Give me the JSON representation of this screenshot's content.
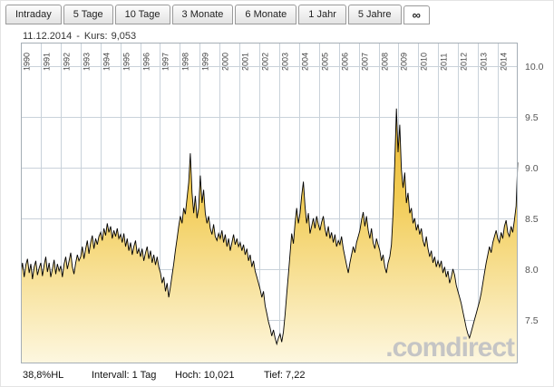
{
  "tabs": {
    "active_index": 7,
    "items": [
      {
        "id": "intraday",
        "label": "Intraday"
      },
      {
        "id": "5-tage",
        "label": "5 Tage"
      },
      {
        "id": "10-tage",
        "label": "10 Tage"
      },
      {
        "id": "3-monate",
        "label": "3 Monate"
      },
      {
        "id": "6-monate",
        "label": "6 Monate"
      },
      {
        "id": "1-jahr",
        "label": "1 Jahr"
      },
      {
        "id": "5-jahre",
        "label": "5 Jahre"
      },
      {
        "id": "max",
        "label": "∞"
      }
    ]
  },
  "header": {
    "date": "11.12.2014",
    "separator": "-",
    "kurs_label": "Kurs:",
    "kurs_value": "9,053"
  },
  "footer": {
    "items": [
      "38,8%HL",
      "Intervall: 1 Tag",
      "Hoch: 10,021",
      "Tief: 7,22"
    ]
  },
  "watermark": ".comdirect",
  "colors": {
    "area_top": "#e8ae22",
    "area_mid": "#f2cc55",
    "area_bottom": "#fdf7e0",
    "line": "#000000",
    "grid": "#c9d2da",
    "plot_border": "#a5aeb6",
    "year_label": "#444444",
    "tick_label": "#555555"
  },
  "chart_data": {
    "type": "area",
    "title": "",
    "x_unit": "monthly samples 1990-01 to 2014-12, daily interval chart",
    "years": [
      "1990",
      "1991",
      "1992",
      "1993",
      "1994",
      "1995",
      "1996",
      "1997",
      "1998",
      "1999",
      "2000",
      "2001",
      "2002",
      "2003",
      "2004",
      "2005",
      "2006",
      "2007",
      "2008",
      "2009",
      "2010",
      "2011",
      "2012",
      "2013",
      "2014"
    ],
    "y_ticks": [
      "10.0",
      "9.5",
      "9.0",
      "8.5",
      "8.0",
      "7.5"
    ],
    "y_range_rendered": [
      7.07,
      10.23
    ],
    "high": "10,021",
    "low": "7,22",
    "last_value": 9.053,
    "grid": true,
    "legend": false,
    "values": [
      7.95,
      8.06,
      7.92,
      8.04,
      8.1,
      7.96,
      8.05,
      7.9,
      8.02,
      8.08,
      7.94,
      8.01,
      8.06,
      7.93,
      8.04,
      8.12,
      7.97,
      8.06,
      7.92,
      8.0,
      8.09,
      7.95,
      8.05,
      7.98,
      8.03,
      7.92,
      8.05,
      8.12,
      8.0,
      8.08,
      8.16,
      8.02,
      7.95,
      8.06,
      8.14,
      8.08,
      8.12,
      8.22,
      8.1,
      8.2,
      8.28,
      8.15,
      8.26,
      8.33,
      8.2,
      8.3,
      8.24,
      8.32,
      8.36,
      8.28,
      8.4,
      8.33,
      8.45,
      8.36,
      8.42,
      8.3,
      8.38,
      8.32,
      8.4,
      8.3,
      8.34,
      8.26,
      8.35,
      8.22,
      8.3,
      8.18,
      8.26,
      8.14,
      8.22,
      8.28,
      8.15,
      8.2,
      8.12,
      8.2,
      8.08,
      8.16,
      8.22,
      8.1,
      8.18,
      8.06,
      8.14,
      8.04,
      8.12,
      8.02,
      7.96,
      7.86,
      7.92,
      7.78,
      7.86,
      7.72,
      7.82,
      7.94,
      8.05,
      8.18,
      8.3,
      8.42,
      8.52,
      8.45,
      8.6,
      8.54,
      8.7,
      8.85,
      9.14,
      8.75,
      8.55,
      8.72,
      8.5,
      8.6,
      8.92,
      8.65,
      8.78,
      8.55,
      8.45,
      8.52,
      8.4,
      8.34,
      8.44,
      8.32,
      8.28,
      8.35,
      8.3,
      8.38,
      8.26,
      8.34,
      8.22,
      8.3,
      8.18,
      8.26,
      8.34,
      8.24,
      8.3,
      8.22,
      8.26,
      8.18,
      8.24,
      8.14,
      8.2,
      8.08,
      8.14,
      8.02,
      8.08,
      7.98,
      7.92,
      7.86,
      7.8,
      7.72,
      7.78,
      7.64,
      7.56,
      7.48,
      7.42,
      7.34,
      7.4,
      7.32,
      7.26,
      7.32,
      7.36,
      7.28,
      7.38,
      7.55,
      7.75,
      7.95,
      8.15,
      8.35,
      8.25,
      8.45,
      8.6,
      8.45,
      8.55,
      8.72,
      8.86,
      8.62,
      8.45,
      8.55,
      8.35,
      8.42,
      8.5,
      8.4,
      8.52,
      8.44,
      8.38,
      8.46,
      8.52,
      8.4,
      8.32,
      8.42,
      8.3,
      8.36,
      8.26,
      8.34,
      8.22,
      8.28,
      8.24,
      8.32,
      8.2,
      8.12,
      8.04,
      7.96,
      8.06,
      8.14,
      8.22,
      8.16,
      8.26,
      8.32,
      8.38,
      8.48,
      8.56,
      8.42,
      8.52,
      8.38,
      8.3,
      8.4,
      8.26,
      8.2,
      8.3,
      8.24,
      8.18,
      8.08,
      8.14,
      8.02,
      7.96,
      8.06,
      8.12,
      8.24,
      8.55,
      9.05,
      9.58,
      9.15,
      9.42,
      8.98,
      8.8,
      8.95,
      8.65,
      8.75,
      8.55,
      8.6,
      8.45,
      8.5,
      8.38,
      8.44,
      8.34,
      8.4,
      8.28,
      8.22,
      8.32,
      8.2,
      8.12,
      8.18,
      8.06,
      8.12,
      8.02,
      8.08,
      8.02,
      8.08,
      7.96,
      8.02,
      7.92,
      7.98,
      7.86,
      7.92,
      8.0,
      7.94,
      7.84,
      7.78,
      7.72,
      7.66,
      7.58,
      7.5,
      7.42,
      7.36,
      7.32,
      7.38,
      7.44,
      7.5,
      7.56,
      7.62,
      7.68,
      7.76,
      7.86,
      7.96,
      8.06,
      8.14,
      8.22,
      8.16,
      8.26,
      8.32,
      8.38,
      8.3,
      8.26,
      8.36,
      8.3,
      8.42,
      8.48,
      8.36,
      8.32,
      8.42,
      8.36,
      8.48,
      8.62,
      9.05
    ]
  }
}
